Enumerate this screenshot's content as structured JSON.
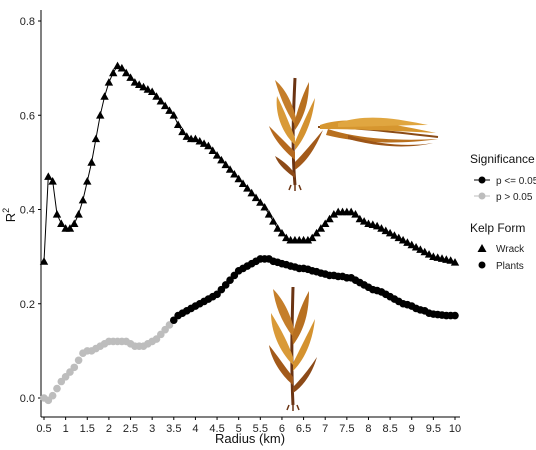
{
  "chart_data": {
    "type": "scatter",
    "xlabel": "Radius (km)",
    "ylabel": "R",
    "ylabel_sup": "2",
    "xlim": [
      0.5,
      10
    ],
    "ylim": [
      0.0,
      0.82
    ],
    "x_ticks": [
      0.5,
      1,
      1.5,
      2,
      2.5,
      3,
      3.5,
      4,
      4.5,
      5,
      5.5,
      6,
      6.5,
      7,
      7.5,
      8,
      8.5,
      9,
      9.5,
      10
    ],
    "x_tick_labels": [
      "0.5",
      "1",
      "1.5",
      "2",
      "2.5",
      "3",
      "3.5",
      "4",
      "4.5",
      "5",
      "5.5",
      "6",
      "6.5",
      "7",
      "7.5",
      "8",
      "8.5",
      "9",
      "9.5",
      "10"
    ],
    "y_ticks": [
      0.0,
      0.2,
      0.4,
      0.6,
      0.8
    ],
    "y_tick_labels": [
      "0.0",
      "0.2",
      "0.4",
      "0.6",
      "0.8"
    ],
    "grid": false,
    "legend": {
      "placement": "right",
      "significance_title": "Significance",
      "significance_items": [
        {
          "label": "p <= 0.05",
          "color": "#000000"
        },
        {
          "label": "p > 0.05",
          "color": "#bdbdbd"
        }
      ],
      "form_title": "Kelp Form",
      "form_items": [
        {
          "label": "Wrack",
          "shape": "triangle"
        },
        {
          "label": "Plants",
          "shape": "circle"
        }
      ]
    },
    "colors": {
      "significant": "#000000",
      "nonsignificant": "#bdbdbd"
    },
    "series": [
      {
        "name": "Wrack",
        "shape": "triangle",
        "significance": "p <= 0.05",
        "points": [
          [
            0.5,
            0.29
          ],
          [
            0.6,
            0.47
          ],
          [
            0.7,
            0.46
          ],
          [
            0.8,
            0.39
          ],
          [
            0.9,
            0.37
          ],
          [
            1.0,
            0.36
          ],
          [
            1.1,
            0.36
          ],
          [
            1.2,
            0.37
          ],
          [
            1.3,
            0.39
          ],
          [
            1.4,
            0.42
          ],
          [
            1.5,
            0.46
          ],
          [
            1.6,
            0.5
          ],
          [
            1.7,
            0.55
          ],
          [
            1.8,
            0.6
          ],
          [
            1.9,
            0.64
          ],
          [
            2.0,
            0.67
          ],
          [
            2.1,
            0.69
          ],
          [
            2.2,
            0.705
          ],
          [
            2.3,
            0.7
          ],
          [
            2.4,
            0.69
          ],
          [
            2.5,
            0.68
          ],
          [
            2.6,
            0.67
          ],
          [
            2.7,
            0.665
          ],
          [
            2.8,
            0.66
          ],
          [
            2.9,
            0.655
          ],
          [
            3.0,
            0.65
          ],
          [
            3.1,
            0.64
          ],
          [
            3.2,
            0.63
          ],
          [
            3.3,
            0.62
          ],
          [
            3.4,
            0.61
          ],
          [
            3.5,
            0.6
          ],
          [
            3.6,
            0.58
          ],
          [
            3.7,
            0.565
          ],
          [
            3.8,
            0.555
          ],
          [
            3.9,
            0.55
          ],
          [
            4.0,
            0.55
          ],
          [
            4.1,
            0.545
          ],
          [
            4.2,
            0.54
          ],
          [
            4.3,
            0.535
          ],
          [
            4.4,
            0.525
          ],
          [
            4.5,
            0.515
          ],
          [
            4.6,
            0.505
          ],
          [
            4.7,
            0.495
          ],
          [
            4.8,
            0.485
          ],
          [
            4.9,
            0.475
          ],
          [
            5.0,
            0.465
          ],
          [
            5.1,
            0.455
          ],
          [
            5.2,
            0.445
          ],
          [
            5.3,
            0.435
          ],
          [
            5.4,
            0.425
          ],
          [
            5.5,
            0.415
          ],
          [
            5.6,
            0.405
          ],
          [
            5.7,
            0.39
          ],
          [
            5.8,
            0.375
          ],
          [
            5.9,
            0.36
          ],
          [
            6.0,
            0.35
          ],
          [
            6.1,
            0.34
          ],
          [
            6.2,
            0.335
          ],
          [
            6.3,
            0.335
          ],
          [
            6.4,
            0.335
          ],
          [
            6.5,
            0.335
          ],
          [
            6.6,
            0.335
          ],
          [
            6.7,
            0.34
          ],
          [
            6.8,
            0.35
          ],
          [
            6.9,
            0.36
          ],
          [
            7.0,
            0.37
          ],
          [
            7.1,
            0.38
          ],
          [
            7.2,
            0.39
          ],
          [
            7.3,
            0.395
          ],
          [
            7.4,
            0.395
          ],
          [
            7.5,
            0.395
          ],
          [
            7.6,
            0.395
          ],
          [
            7.7,
            0.39
          ],
          [
            7.8,
            0.38
          ],
          [
            7.9,
            0.375
          ],
          [
            8.0,
            0.37
          ],
          [
            8.1,
            0.368
          ],
          [
            8.2,
            0.365
          ],
          [
            8.3,
            0.36
          ],
          [
            8.4,
            0.355
          ],
          [
            8.5,
            0.35
          ],
          [
            8.6,
            0.345
          ],
          [
            8.7,
            0.34
          ],
          [
            8.8,
            0.335
          ],
          [
            8.9,
            0.33
          ],
          [
            9.0,
            0.325
          ],
          [
            9.1,
            0.32
          ],
          [
            9.2,
            0.315
          ],
          [
            9.3,
            0.31
          ],
          [
            9.4,
            0.305
          ],
          [
            9.5,
            0.3
          ],
          [
            9.6,
            0.298
          ],
          [
            9.7,
            0.296
          ],
          [
            9.8,
            0.294
          ],
          [
            9.9,
            0.292
          ],
          [
            10.0,
            0.288
          ]
        ]
      },
      {
        "name": "Plants",
        "shape": "circle",
        "significance_threshold_x": 3.5,
        "points": [
          [
            0.5,
            0.0
          ],
          [
            0.6,
            -0.005
          ],
          [
            0.7,
            0.005
          ],
          [
            0.8,
            0.02
          ],
          [
            0.9,
            0.035
          ],
          [
            1.0,
            0.045
          ],
          [
            1.1,
            0.055
          ],
          [
            1.2,
            0.065
          ],
          [
            1.3,
            0.08
          ],
          [
            1.4,
            0.095
          ],
          [
            1.5,
            0.1
          ],
          [
            1.6,
            0.1
          ],
          [
            1.7,
            0.105
          ],
          [
            1.8,
            0.11
          ],
          [
            1.9,
            0.115
          ],
          [
            2.0,
            0.12
          ],
          [
            2.1,
            0.12
          ],
          [
            2.2,
            0.12
          ],
          [
            2.3,
            0.12
          ],
          [
            2.4,
            0.12
          ],
          [
            2.5,
            0.115
          ],
          [
            2.6,
            0.11
          ],
          [
            2.7,
            0.11
          ],
          [
            2.8,
            0.11
          ],
          [
            2.9,
            0.115
          ],
          [
            3.0,
            0.12
          ],
          [
            3.1,
            0.125
          ],
          [
            3.2,
            0.135
          ],
          [
            3.3,
            0.145
          ],
          [
            3.4,
            0.155
          ],
          [
            3.5,
            0.165
          ],
          [
            3.6,
            0.175
          ],
          [
            3.7,
            0.18
          ],
          [
            3.8,
            0.185
          ],
          [
            3.9,
            0.19
          ],
          [
            4.0,
            0.195
          ],
          [
            4.1,
            0.2
          ],
          [
            4.2,
            0.205
          ],
          [
            4.3,
            0.21
          ],
          [
            4.4,
            0.215
          ],
          [
            4.5,
            0.22
          ],
          [
            4.6,
            0.23
          ],
          [
            4.7,
            0.24
          ],
          [
            4.8,
            0.25
          ],
          [
            4.9,
            0.26
          ],
          [
            5.0,
            0.27
          ],
          [
            5.1,
            0.275
          ],
          [
            5.2,
            0.28
          ],
          [
            5.3,
            0.285
          ],
          [
            5.4,
            0.29
          ],
          [
            5.5,
            0.295
          ],
          [
            5.6,
            0.295
          ],
          [
            5.7,
            0.295
          ],
          [
            5.8,
            0.29
          ],
          [
            5.9,
            0.288
          ],
          [
            6.0,
            0.285
          ],
          [
            6.1,
            0.283
          ],
          [
            6.2,
            0.28
          ],
          [
            6.3,
            0.278
          ],
          [
            6.4,
            0.275
          ],
          [
            6.5,
            0.275
          ],
          [
            6.6,
            0.273
          ],
          [
            6.7,
            0.27
          ],
          [
            6.8,
            0.268
          ],
          [
            6.9,
            0.265
          ],
          [
            7.0,
            0.263
          ],
          [
            7.1,
            0.26
          ],
          [
            7.2,
            0.26
          ],
          [
            7.3,
            0.258
          ],
          [
            7.4,
            0.258
          ],
          [
            7.5,
            0.255
          ],
          [
            7.6,
            0.255
          ],
          [
            7.7,
            0.25
          ],
          [
            7.8,
            0.245
          ],
          [
            7.9,
            0.24
          ],
          [
            8.0,
            0.235
          ],
          [
            8.1,
            0.23
          ],
          [
            8.2,
            0.228
          ],
          [
            8.3,
            0.225
          ],
          [
            8.4,
            0.22
          ],
          [
            8.5,
            0.215
          ],
          [
            8.6,
            0.21
          ],
          [
            8.7,
            0.205
          ],
          [
            8.8,
            0.2
          ],
          [
            8.9,
            0.198
          ],
          [
            9.0,
            0.195
          ],
          [
            9.1,
            0.19
          ],
          [
            9.2,
            0.187
          ],
          [
            9.3,
            0.185
          ],
          [
            9.4,
            0.18
          ],
          [
            9.5,
            0.178
          ],
          [
            9.6,
            0.177
          ],
          [
            9.7,
            0.176
          ],
          [
            9.8,
            0.175
          ],
          [
            9.9,
            0.175
          ],
          [
            10.0,
            0.175
          ]
        ]
      }
    ],
    "images": [
      {
        "name": "wrack-upright-image",
        "depicts": "kelp"
      },
      {
        "name": "wrack-horizontal-image",
        "depicts": "kelp"
      },
      {
        "name": "plant-kelp-image",
        "depicts": "kelp"
      }
    ]
  }
}
